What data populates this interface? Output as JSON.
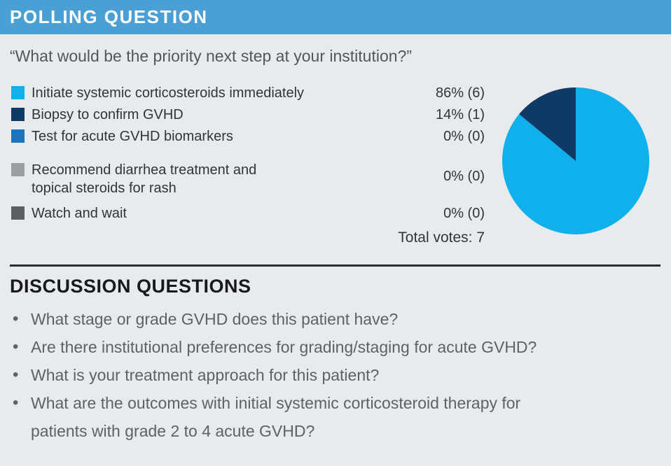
{
  "header": {
    "title": "POLLING QUESTION",
    "bar_color": "#4A9FD4",
    "title_color": "#FFFFFF"
  },
  "question": "“What would be the priority next step at your institution?”",
  "poll": {
    "options": [
      {
        "label": "Initiate systemic corticosteroids immediately",
        "result": "86% (6)",
        "percent": 86,
        "votes": 6,
        "color": "#0FB0EC"
      },
      {
        "label": "Biopsy to confirm GVHD",
        "result": "14% (1)",
        "percent": 14,
        "votes": 1,
        "color": "#0E3A65"
      },
      {
        "label": "Test for acute GVHD biomarkers",
        "result": "0% (0)",
        "percent": 0,
        "votes": 0,
        "color": "#1C75BC"
      },
      {
        "label": "Recommend diarrhea treatment and\ntopical steroids for rash",
        "result": "0% (0)",
        "percent": 0,
        "votes": 0,
        "color": "#9C9EA1"
      },
      {
        "label": "Watch and wait",
        "result": "0% (0)",
        "percent": 0,
        "votes": 0,
        "color": "#5E5F62"
      }
    ],
    "total_label": "Total votes: 7",
    "total_votes": 7
  },
  "chart_data": {
    "type": "pie",
    "title": "",
    "categories": [
      "Initiate systemic corticosteroids immediately",
      "Biopsy to confirm GVHD",
      "Test for acute GVHD biomarkers",
      "Recommend diarrhea treatment and topical steroids for rash",
      "Watch and wait"
    ],
    "values": [
      86,
      14,
      0,
      0,
      0
    ],
    "colors": [
      "#0FB0EC",
      "#0E3A65",
      "#1C75BC",
      "#9C9EA1",
      "#5E5F62"
    ],
    "start_angle_deg": 0,
    "direction": "clockwise",
    "legend_position": "left",
    "radius_px": 105
  },
  "discussion": {
    "title": "DISCUSSION QUESTIONS",
    "bullets": [
      "What stage or grade GVHD does this patient have?",
      "Are there institutional preferences for grading/staging for acute GVHD?",
      "What is your treatment approach for this patient?",
      "What are the outcomes with initial systemic corticosteroid therapy for\npatients with grade 2 to 4 acute GVHD?"
    ]
  }
}
